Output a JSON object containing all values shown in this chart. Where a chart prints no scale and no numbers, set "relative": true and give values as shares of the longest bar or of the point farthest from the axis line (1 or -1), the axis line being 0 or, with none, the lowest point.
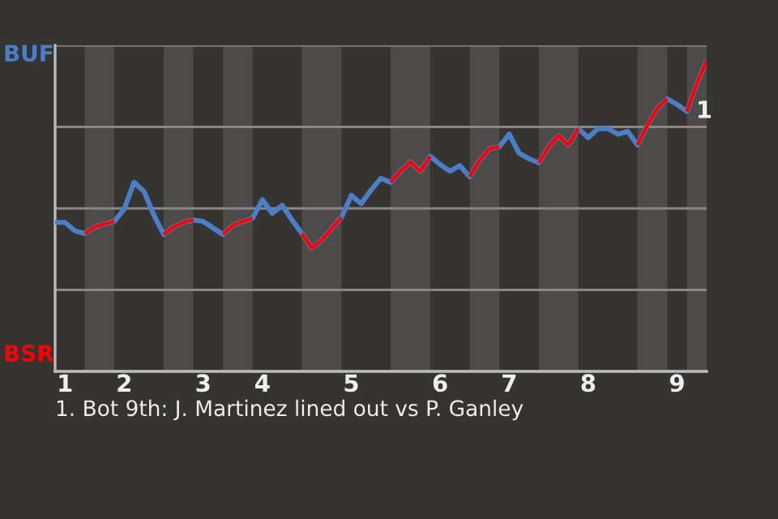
{
  "chart_data": {
    "type": "line",
    "categories": [
      null,
      "1",
      null,
      null,
      null,
      null,
      null,
      "2",
      null,
      null,
      null,
      null,
      null,
      null,
      null,
      "3",
      null,
      null,
      null,
      null,
      null,
      "4",
      null,
      null,
      null,
      null,
      null,
      null,
      null,
      null,
      "5",
      null,
      null,
      null,
      null,
      null,
      null,
      null,
      null,
      "6",
      null,
      null,
      null,
      null,
      null,
      null,
      "7",
      null,
      null,
      null,
      null,
      null,
      null,
      null,
      "8",
      null,
      null,
      null,
      null,
      null,
      null,
      null,
      null,
      "9",
      null,
      null,
      null
    ],
    "relative": true,
    "series": [
      {
        "color": "#4a7fc8",
        "values": [
          0.48,
          0.48,
          0.453,
          0.444,
          0.465,
          0.475,
          0.483,
          0.523,
          0.609,
          0.58,
          0.504,
          0.441,
          0.465,
          0.48,
          0.488,
          0.483,
          0.462,
          0.441,
          0.47,
          0.483,
          0.493,
          0.553,
          0.509,
          0.535,
          0.488,
          0.444,
          0.397,
          0.423,
          0.459,
          0.496,
          0.567,
          0.54,
          0.584,
          0.622,
          0.609,
          0.645,
          0.675,
          0.645,
          0.693,
          0.666,
          0.645,
          0.663,
          0.627,
          0.68,
          0.717,
          0.724,
          0.764,
          0.703,
          0.685,
          0.672,
          0.724,
          0.759,
          0.729,
          0.782,
          0.753,
          0.782,
          0.782,
          0.764,
          0.773,
          0.729,
          0.794,
          0.847,
          0.878,
          0.86,
          0.837,
          0.926,
          1
        ]
      },
      {
        "color": "#ff0000",
        "values": [
          null,
          null,
          null,
          0.444,
          0.465,
          0.475,
          0.483,
          null,
          null,
          null,
          null,
          0.441,
          0.465,
          0.48,
          0.488,
          null,
          null,
          0.441,
          0.47,
          0.483,
          0.493,
          null,
          null,
          null,
          null,
          0.444,
          0.397,
          0.423,
          0.459,
          0.496,
          null,
          null,
          null,
          null,
          0.609,
          0.645,
          0.675,
          0.645,
          0.693,
          null,
          null,
          null,
          0.627,
          0.68,
          0.717,
          0.724,
          null,
          null,
          null,
          0.672,
          0.724,
          0.759,
          0.729,
          0.782,
          null,
          null,
          null,
          null,
          null,
          0.729,
          0.794,
          0.847,
          0.878,
          null,
          0.837,
          0.926,
          1
        ]
      }
    ],
    "grid": "y",
    "annotations": [
      "BUF",
      "BSR",
      "1",
      "1. Bot 9th: J. Martinez lined out vs P. Ganley"
    ]
  }
}
